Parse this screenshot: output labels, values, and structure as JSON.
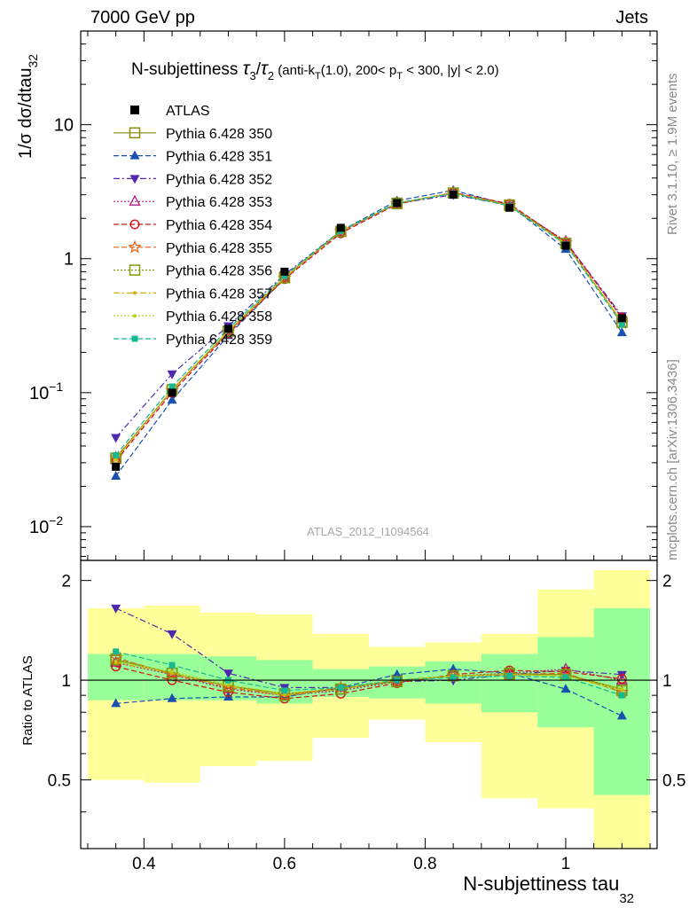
{
  "header": {
    "left": "7000 GeV pp",
    "right": "Jets"
  },
  "side": {
    "rivet": "Rivet 3.1.10, ≥ 1.9M events",
    "mcplots": "mcplots.cern.ch [arXiv:1306.3436]"
  },
  "plot_title": {
    "prefix": "N-subjettiness ",
    "tau": "τ",
    "sub3": "3",
    "slash": "/",
    "sub2": "2",
    "cond_a": " (anti-k",
    "cond_T": "T",
    "cond_b": "(1.0), 200< p",
    "cond_c": " < 300, |y| < 2.0)"
  },
  "watermark": "ATLAS_2012_I1094564",
  "ylabel_main": {
    "text": "1/σ dσ/dtau",
    "sub": "32"
  },
  "ylabel_ratio": "Ratio to ATLAS",
  "xlabel": {
    "text": "N-subjettiness tau",
    "sub": "32"
  },
  "main_ticks": [
    {
      "value": 10,
      "base": "10",
      "exp": ""
    },
    {
      "value": 1,
      "base": "1",
      "exp": ""
    },
    {
      "value": 0.1,
      "base": "10",
      "exp": "−1"
    },
    {
      "value": 0.01,
      "base": "10",
      "exp": "−2"
    }
  ],
  "ratio_ticks": [
    {
      "value": 2,
      "label": "2"
    },
    {
      "value": 1,
      "label": "1"
    },
    {
      "value": 0.5,
      "label": "0.5"
    }
  ],
  "x_ticks": [
    {
      "value": 0.4,
      "label": "0.4"
    },
    {
      "value": 0.6,
      "label": "0.6"
    },
    {
      "value": 0.8,
      "label": "0.8"
    },
    {
      "value": 1.0,
      "label": "1"
    }
  ],
  "chart_data": {
    "type": "line",
    "xlabel": "N-subjettiness tau32",
    "ylabel": "1/σ dσ/dtau32",
    "x_range": [
      0.31,
      1.13
    ],
    "y_range_main": [
      0.0056,
      50
    ],
    "y_scale_main": "log",
    "y_range_ratio": [
      0.31,
      2.3
    ],
    "y_scale_ratio": "log",
    "legend_position": "top-left",
    "bins": [
      {
        "lo": 0.32,
        "hi": 0.4
      },
      {
        "lo": 0.4,
        "hi": 0.48
      },
      {
        "lo": 0.48,
        "hi": 0.56
      },
      {
        "lo": 0.56,
        "hi": 0.64
      },
      {
        "lo": 0.64,
        "hi": 0.72
      },
      {
        "lo": 0.72,
        "hi": 0.8
      },
      {
        "lo": 0.8,
        "hi": 0.88
      },
      {
        "lo": 0.88,
        "hi": 0.96
      },
      {
        "lo": 0.96,
        "hi": 1.04
      },
      {
        "lo": 1.04,
        "hi": 1.12
      }
    ],
    "x": [
      0.36,
      0.44,
      0.52,
      0.6,
      0.68,
      0.76,
      0.84,
      0.92,
      1.0,
      1.08
    ],
    "data": {
      "name": "ATLAS",
      "values": [
        0.028,
        0.1,
        0.3,
        0.8,
        1.7,
        2.6,
        3.0,
        2.4,
        1.25,
        0.36
      ],
      "band_stat_lo": [
        0.87,
        0.87,
        0.87,
        0.85,
        0.89,
        0.88,
        0.85,
        0.8,
        0.72,
        0.45
      ],
      "band_stat_hi": [
        1.2,
        1.2,
        1.18,
        1.15,
        1.08,
        1.1,
        1.14,
        1.2,
        1.35,
        1.65
      ],
      "band_tot_lo": [
        0.5,
        0.49,
        0.55,
        0.57,
        0.67,
        0.76,
        0.65,
        0.44,
        0.41,
        0.31
      ],
      "band_tot_hi": [
        1.65,
        1.68,
        1.6,
        1.58,
        1.38,
        1.26,
        1.3,
        1.38,
        1.88,
        2.15
      ]
    },
    "series": [
      {
        "name": "Pythia 6.428 350",
        "color": "#8a8a10",
        "dash": "solid",
        "marker": "open-square",
        "ratio": [
          1.15,
          1.05,
          0.96,
          0.91,
          0.94,
          1.0,
          1.03,
          1.04,
          1.04,
          0.94
        ]
      },
      {
        "name": "Pythia 6.428 351",
        "color": "#1a50b0",
        "dash": "dashed",
        "marker": "filled-triangle-up",
        "ratio": [
          0.85,
          0.88,
          0.89,
          0.89,
          0.95,
          1.04,
          1.08,
          1.05,
          0.94,
          0.78
        ]
      },
      {
        "name": "Pythia 6.428 352",
        "color": "#5028b0",
        "dash": "dashdot",
        "marker": "filled-triangle-down",
        "ratio": [
          1.65,
          1.38,
          1.05,
          0.95,
          0.95,
          0.99,
          1.0,
          1.04,
          1.07,
          1.04
        ]
      },
      {
        "name": "Pythia 6.428 353",
        "color": "#b01a88",
        "dash": "dotted",
        "marker": "open-triangle-up",
        "ratio": [
          1.13,
          1.04,
          0.94,
          0.9,
          0.93,
          0.99,
          1.03,
          1.05,
          1.08,
          1.0
        ]
      },
      {
        "name": "Pythia 6.428 354",
        "color": "#d01414",
        "dash": "dashed",
        "marker": "open-circle",
        "ratio": [
          1.1,
          1.0,
          0.92,
          0.88,
          0.91,
          0.98,
          1.04,
          1.07,
          1.06,
          1.01
        ]
      },
      {
        "name": "Pythia 6.428 355",
        "color": "#e06014",
        "dash": "dashed",
        "marker": "open-star",
        "ratio": [
          1.17,
          1.04,
          0.95,
          0.9,
          0.95,
          0.99,
          1.03,
          1.04,
          1.05,
          0.92
        ]
      },
      {
        "name": "Pythia 6.428 356",
        "color": "#7a9a10",
        "dash": "dotted",
        "marker": "open-square",
        "ratio": [
          1.16,
          1.05,
          0.96,
          0.9,
          0.94,
          0.99,
          1.03,
          1.05,
          1.04,
          0.93
        ]
      },
      {
        "name": "Pythia 6.428 357",
        "color": "#d4b010",
        "dash": "dashdot",
        "marker": "small-dot",
        "ratio": [
          1.13,
          1.05,
          0.96,
          0.9,
          0.94,
          1.0,
          1.03,
          1.04,
          1.03,
          0.93
        ]
      },
      {
        "name": "Pythia 6.428 358",
        "color": "#b4d010",
        "dash": "dotted",
        "marker": "small-dot",
        "ratio": [
          1.14,
          1.06,
          0.97,
          0.91,
          0.95,
          1.0,
          1.03,
          1.04,
          1.03,
          0.94
        ]
      },
      {
        "name": "Pythia 6.428 359",
        "color": "#18b890",
        "dash": "dashed",
        "marker": "filled-square",
        "ratio": [
          1.22,
          1.11,
          1.0,
          0.93,
          0.95,
          1.0,
          1.02,
          1.03,
          1.02,
          0.9
        ]
      }
    ]
  }
}
